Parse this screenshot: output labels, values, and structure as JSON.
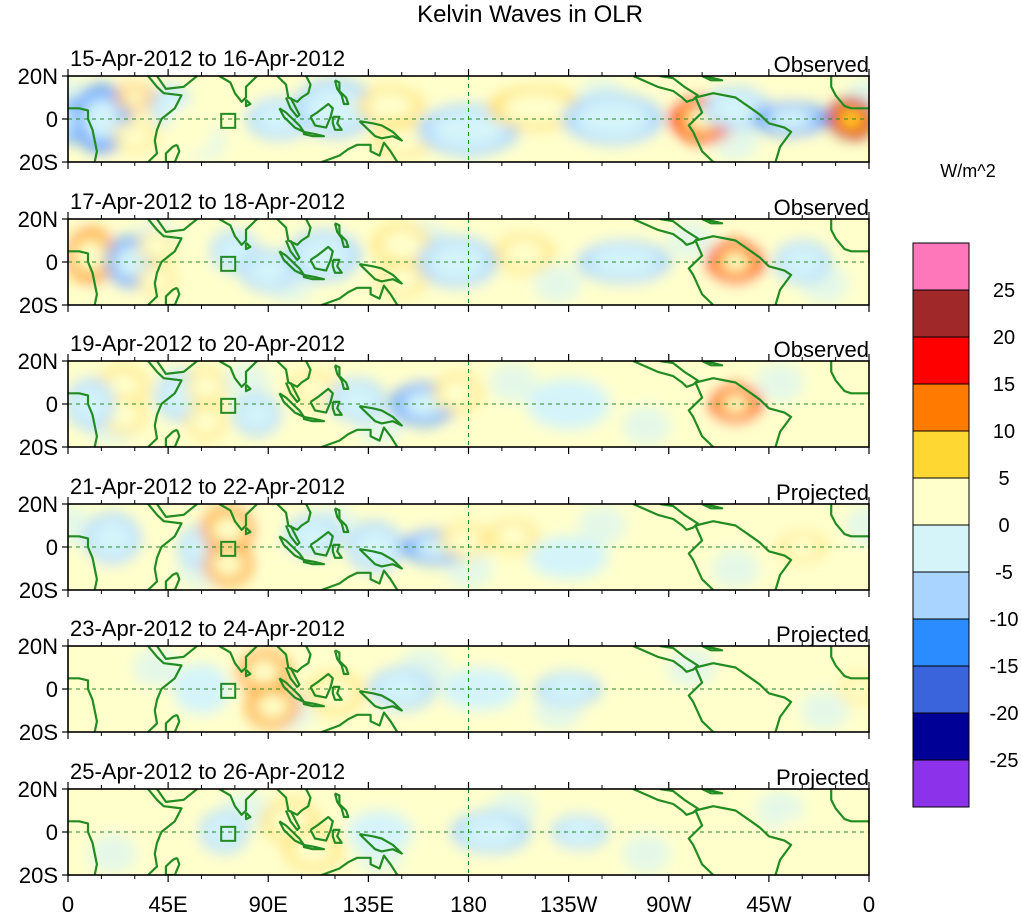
{
  "chart_data": {
    "type": "heatmap",
    "title": "Kelvin Waves in OLR",
    "variable": "OLR anomaly",
    "units": "W/m^2",
    "xlabel": "",
    "ylabel": "",
    "x_ticks": [
      "0",
      "45E",
      "90E",
      "135E",
      "180",
      "135W",
      "90W",
      "45W",
      "0"
    ],
    "x_tick_lon": [
      0,
      45,
      90,
      135,
      180,
      225,
      270,
      315,
      360
    ],
    "y_ticks": [
      "20N",
      "0",
      "20S"
    ],
    "y_tick_lat": [
      20,
      0,
      -20
    ],
    "lon_range": [
      0,
      360
    ],
    "lat_range": [
      -20,
      20
    ],
    "colorbar": {
      "levels": [
        "25",
        "20",
        "15",
        "10",
        "5",
        "0",
        "-5",
        "-10",
        "-15",
        "-20",
        "-25"
      ],
      "colors": [
        "#ff77bb",
        "#a02828",
        "#ff0000",
        "#ff7a00",
        "#ffd732",
        "#ffffcc",
        "#d4f4fa",
        "#a8d4ff",
        "#2a8cff",
        "#3a64dc",
        "#000096",
        "#8c32eb"
      ]
    },
    "panels": [
      {
        "date_range": "15-Apr-2012 to 16-Apr-2012",
        "status": "Observed",
        "anomalies": [
          {
            "lon": 0,
            "lat": -1,
            "value": -10,
            "rlon": 5,
            "rlat": 8
          },
          {
            "lon": 15,
            "lat": 0,
            "value": -12,
            "rlon": 10,
            "rlat": 14
          },
          {
            "lon": 30,
            "lat": 10,
            "value": 12,
            "rlon": 6,
            "rlat": 4
          },
          {
            "lon": 30,
            "lat": -8,
            "value": 10,
            "rlon": 7,
            "rlat": 5
          },
          {
            "lon": 46,
            "lat": 6,
            "value": -7,
            "rlon": 6,
            "rlat": 8
          },
          {
            "lon": 55,
            "lat": -5,
            "value": 4,
            "rlon": 8,
            "rlat": 10
          },
          {
            "lon": 95,
            "lat": 0,
            "value": -8,
            "rlon": 12,
            "rlat": 8
          },
          {
            "lon": 120,
            "lat": 5,
            "value": -7,
            "rlon": 16,
            "rlat": 12
          },
          {
            "lon": 145,
            "lat": 6,
            "value": 9,
            "rlon": 12,
            "rlat": 7
          },
          {
            "lon": 150,
            "lat": -10,
            "value": 6,
            "rlon": 10,
            "rlat": 6
          },
          {
            "lon": 180,
            "lat": -5,
            "value": -6,
            "rlon": 20,
            "rlat": 10
          },
          {
            "lon": 210,
            "lat": 5,
            "value": 6,
            "rlon": 18,
            "rlat": 8
          },
          {
            "lon": 245,
            "lat": 0,
            "value": -9,
            "rlon": 20,
            "rlat": 10
          },
          {
            "lon": 285,
            "lat": 0,
            "value": 18,
            "rlon": 12,
            "rlat": 9
          },
          {
            "lon": 300,
            "lat": 5,
            "value": -8,
            "rlon": 12,
            "rlat": 8
          },
          {
            "lon": 325,
            "lat": 0,
            "value": -10,
            "rlon": 14,
            "rlat": 6
          },
          {
            "lon": 352,
            "lat": 0,
            "value": 22,
            "rlon": 8,
            "rlat": 8
          }
        ]
      },
      {
        "date_range": "17-Apr-2012 to 18-Apr-2012",
        "status": "Observed",
        "anomalies": [
          {
            "lon": 10,
            "lat": 3,
            "value": 14,
            "rlon": 8,
            "rlat": 11
          },
          {
            "lon": 28,
            "lat": 0,
            "value": -10,
            "rlon": 8,
            "rlat": 10
          },
          {
            "lon": 40,
            "lat": 7,
            "value": 8,
            "rlon": 6,
            "rlat": 5
          },
          {
            "lon": 40,
            "lat": -8,
            "value": 9,
            "rlon": 6,
            "rlat": 5
          },
          {
            "lon": 75,
            "lat": 5,
            "value": -6,
            "rlon": 8,
            "rlat": 8
          },
          {
            "lon": 90,
            "lat": -4,
            "value": -6,
            "rlon": 10,
            "rlat": 8
          },
          {
            "lon": 115,
            "lat": 3,
            "value": -7,
            "rlon": 14,
            "rlat": 10
          },
          {
            "lon": 150,
            "lat": 8,
            "value": 8,
            "rlon": 10,
            "rlat": 8
          },
          {
            "lon": 150,
            "lat": -8,
            "value": 7,
            "rlon": 8,
            "rlat": 6
          },
          {
            "lon": 175,
            "lat": 0,
            "value": -5,
            "rlon": 15,
            "rlat": 10
          },
          {
            "lon": 205,
            "lat": 4,
            "value": 7,
            "rlon": 10,
            "rlat": 7
          },
          {
            "lon": 250,
            "lat": 0,
            "value": -8,
            "rlon": 18,
            "rlat": 8
          },
          {
            "lon": 300,
            "lat": 0,
            "value": 19,
            "rlon": 10,
            "rlat": 8
          },
          {
            "lon": 330,
            "lat": 0,
            "value": -6,
            "rlon": 10,
            "rlat": 8
          }
        ]
      },
      {
        "date_range": "19-Apr-2012 to 20-Apr-2012",
        "status": "Observed",
        "anomalies": [
          {
            "lon": 25,
            "lat": 8,
            "value": 9,
            "rlon": 8,
            "rlat": 8
          },
          {
            "lon": 25,
            "lat": -5,
            "value": 10,
            "rlon": 7,
            "rlat": 7
          },
          {
            "lon": 10,
            "lat": 0,
            "value": -6,
            "rlon": 8,
            "rlat": 10
          },
          {
            "lon": 50,
            "lat": 4,
            "value": -6,
            "rlon": 8,
            "rlat": 10
          },
          {
            "lon": 62,
            "lat": 8,
            "value": 10,
            "rlon": 6,
            "rlat": 7
          },
          {
            "lon": 62,
            "lat": -8,
            "value": 10,
            "rlon": 6,
            "rlat": 7
          },
          {
            "lon": 85,
            "lat": -5,
            "value": -7,
            "rlon": 8,
            "rlat": 8
          },
          {
            "lon": 110,
            "lat": 7,
            "value": 7,
            "rlon": 8,
            "rlat": 6
          },
          {
            "lon": 130,
            "lat": 2,
            "value": -6,
            "rlon": 10,
            "rlat": 8
          },
          {
            "lon": 160,
            "lat": 0,
            "value": -11,
            "rlon": 12,
            "rlat": 8
          },
          {
            "lon": 175,
            "lat": 5,
            "value": 8,
            "rlon": 8,
            "rlat": 7
          },
          {
            "lon": 225,
            "lat": 0,
            "value": -4,
            "rlon": 16,
            "rlat": 10
          },
          {
            "lon": 300,
            "lat": 0,
            "value": 17,
            "rlon": 9,
            "rlat": 7
          }
        ]
      },
      {
        "date_range": "21-Apr-2012 to 22-Apr-2012",
        "status": "Projected",
        "anomalies": [
          {
            "lon": 20,
            "lat": 4,
            "value": -6,
            "rlon": 10,
            "rlat": 10
          },
          {
            "lon": 60,
            "lat": 0,
            "value": -8,
            "rlon": 8,
            "rlat": 8
          },
          {
            "lon": 72,
            "lat": 8,
            "value": 12,
            "rlon": 9,
            "rlat": 9
          },
          {
            "lon": 72,
            "lat": -8,
            "value": 12,
            "rlon": 8,
            "rlat": 8
          },
          {
            "lon": 110,
            "lat": 5,
            "value": -6,
            "rlon": 10,
            "rlat": 8
          },
          {
            "lon": 138,
            "lat": 0,
            "value": -5,
            "rlon": 10,
            "rlat": 10
          },
          {
            "lon": 165,
            "lat": 0,
            "value": -10,
            "rlon": 12,
            "rlat": 6
          },
          {
            "lon": 178,
            "lat": 3,
            "value": 6,
            "rlon": 8,
            "rlat": 6
          },
          {
            "lon": 200,
            "lat": 5,
            "value": 7,
            "rlon": 8,
            "rlat": 6
          },
          {
            "lon": 225,
            "lat": -5,
            "value": -4,
            "rlon": 15,
            "rlat": 8
          },
          {
            "lon": 330,
            "lat": 0,
            "value": 6,
            "rlon": 8,
            "rlat": 5
          }
        ]
      },
      {
        "date_range": "23-Apr-2012 to 24-Apr-2012",
        "status": "Projected",
        "anomalies": [
          {
            "lon": 88,
            "lat": 8,
            "value": 12,
            "rlon": 9,
            "rlat": 8
          },
          {
            "lon": 92,
            "lat": -8,
            "value": 11,
            "rlon": 9,
            "rlat": 8
          },
          {
            "lon": 120,
            "lat": -2,
            "value": 8,
            "rlon": 10,
            "rlat": 8
          },
          {
            "lon": 150,
            "lat": 0,
            "value": -5,
            "rlon": 12,
            "rlat": 8
          },
          {
            "lon": 185,
            "lat": 0,
            "value": -4,
            "rlon": 15,
            "rlat": 8
          },
          {
            "lon": 225,
            "lat": 0,
            "value": -5,
            "rlon": 12,
            "rlat": 6
          },
          {
            "lon": 60,
            "lat": 0,
            "value": -4,
            "rlon": 10,
            "rlat": 10
          },
          {
            "lon": 355,
            "lat": 0,
            "value": 6,
            "rlon": 5,
            "rlat": 5
          }
        ]
      },
      {
        "date_range": "25-Apr-2012 to 26-Apr-2012",
        "status": "Projected",
        "anomalies": [
          {
            "lon": 100,
            "lat": 5,
            "value": 9,
            "rlon": 10,
            "rlat": 8
          },
          {
            "lon": 110,
            "lat": -8,
            "value": 8,
            "rlon": 10,
            "rlat": 8
          },
          {
            "lon": 70,
            "lat": 0,
            "value": -6,
            "rlon": 8,
            "rlat": 8
          },
          {
            "lon": 140,
            "lat": 0,
            "value": -4,
            "rlon": 12,
            "rlat": 8
          },
          {
            "lon": 190,
            "lat": 0,
            "value": -5,
            "rlon": 15,
            "rlat": 8
          },
          {
            "lon": 230,
            "lat": 0,
            "value": -6,
            "rlon": 10,
            "rlat": 6
          },
          {
            "lon": 330,
            "lat": 0,
            "value": 5,
            "rlon": 8,
            "rlat": 5
          }
        ]
      }
    ]
  }
}
